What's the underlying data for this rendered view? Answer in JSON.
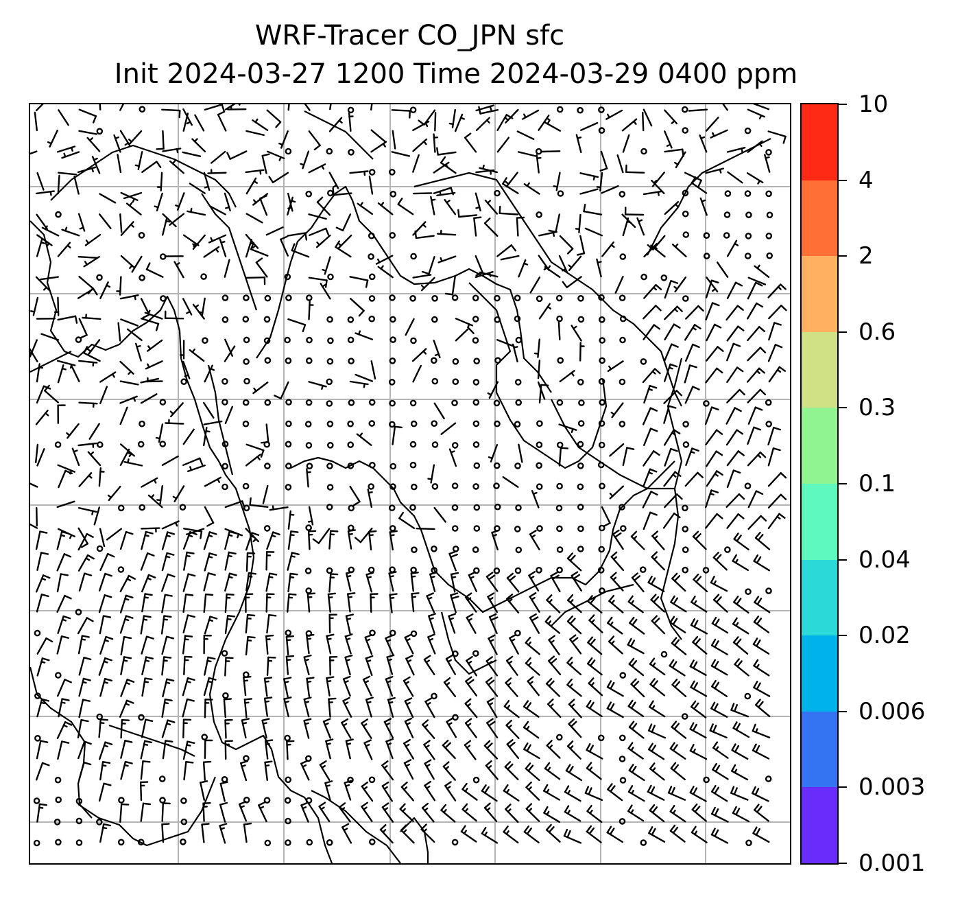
{
  "title": {
    "line1": "WRF-Tracer CO_JPN sfc",
    "line2": "Init 2024-03-27 1200 Time 2024-03-29 0400 ppm"
  },
  "colorbar": {
    "labels": [
      "10",
      "4",
      "2",
      "0.6",
      "0.3",
      "0.1",
      "0.04",
      "0.02",
      "0.006",
      "0.003",
      "0.001"
    ],
    "colors": [
      "#ff2a16",
      "#ff6f36",
      "#ffb061",
      "#d0e084",
      "#90f490",
      "#5cf8be",
      "#2bdad8",
      "#00b2ea",
      "#3474f2",
      "#6a2cfa"
    ]
  },
  "map": {
    "gridline_color": "#b4b4b4",
    "coastline_color": "#000000",
    "barb_color": "#000000",
    "content": "wind barbs and calm-wind circles over coastline map"
  }
}
